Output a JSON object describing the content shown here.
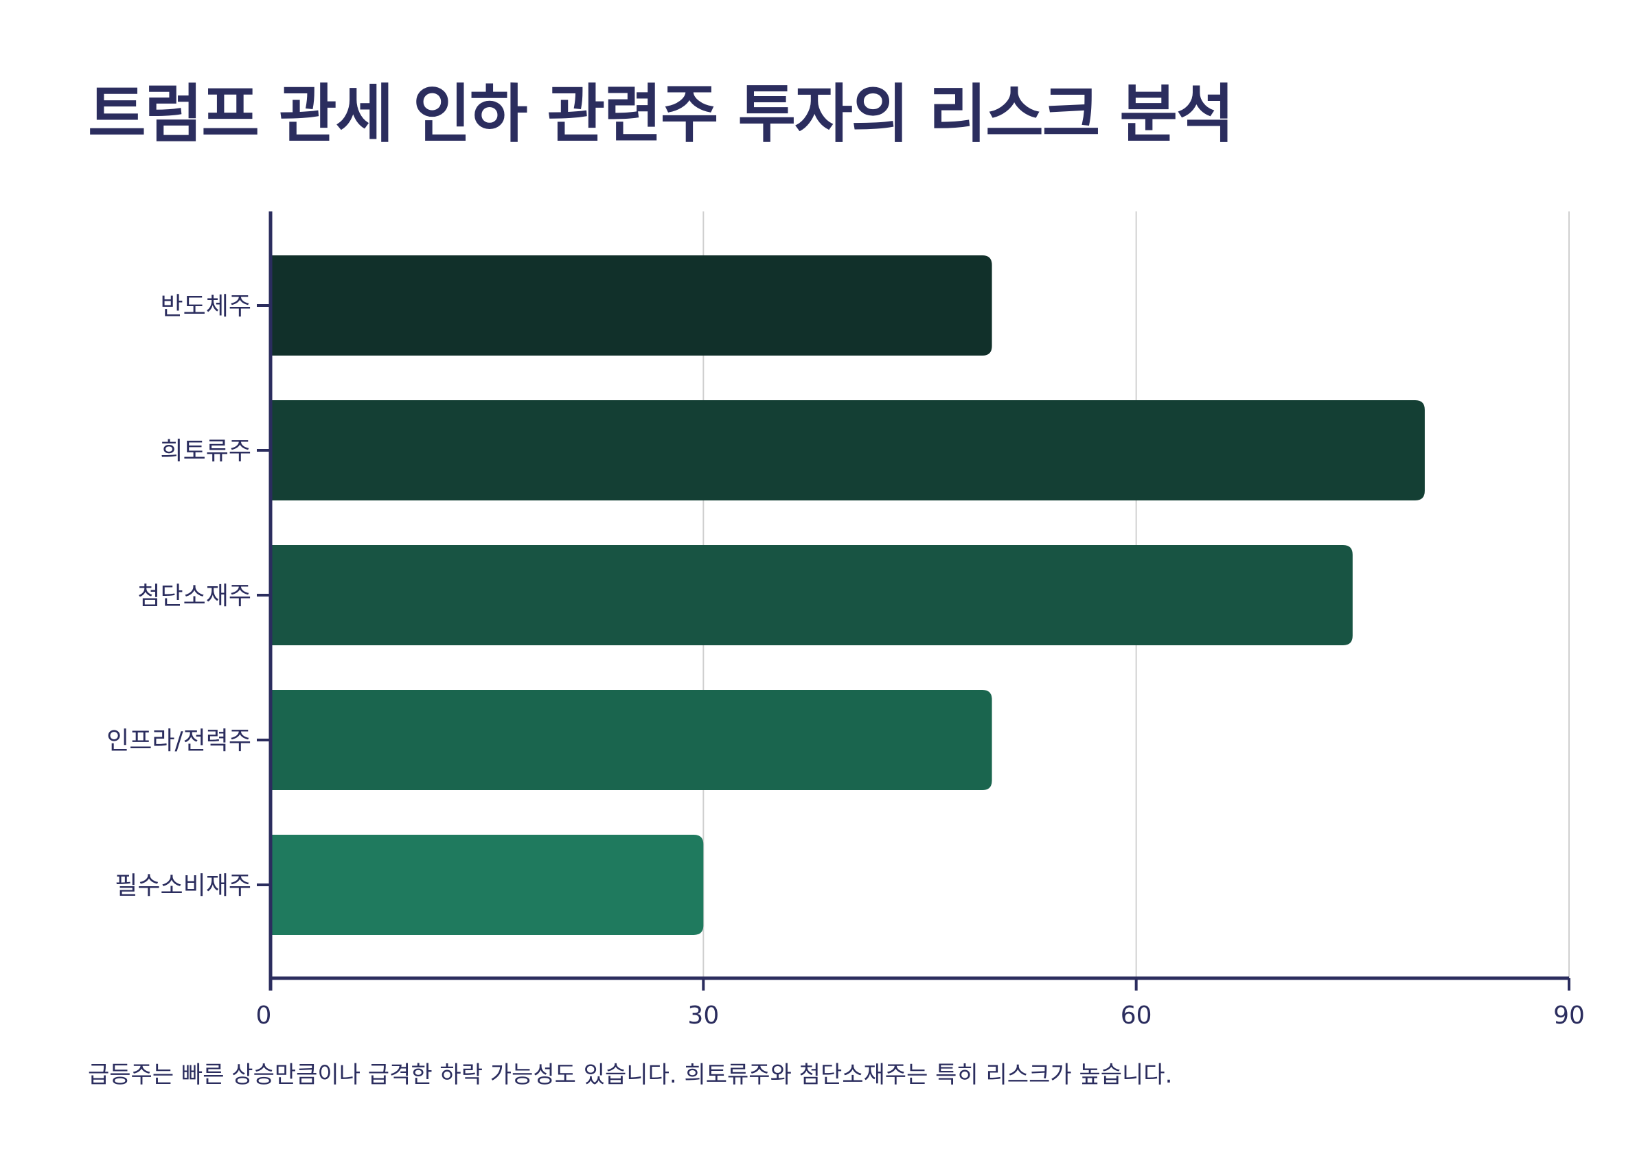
{
  "chart_data": {
    "type": "bar",
    "orientation": "horizontal",
    "title": "트럼프 관세 인하 관련주 투자의 리스크 분석",
    "categories": [
      "반도체주",
      "희토류주",
      "첨단소재주",
      "인프라/전력주",
      "필수소비재주"
    ],
    "values": [
      50,
      80,
      75,
      50,
      30
    ],
    "xlim": [
      0,
      90
    ],
    "xticks": [
      0,
      30,
      60,
      90
    ],
    "grid": "vertical",
    "bar_colors": [
      "#11302a",
      "#143f34",
      "#185443",
      "#1a654e",
      "#1f7a5e"
    ],
    "axis_color": "#2b2d5e",
    "grid_color": "#d0d0d0",
    "note": "급등주는 빠른 상승만큼이나 급격한 하락 가능성도 있습니다. 희토류주와 첨단소재주는 특히 리스크가 높습니다."
  }
}
